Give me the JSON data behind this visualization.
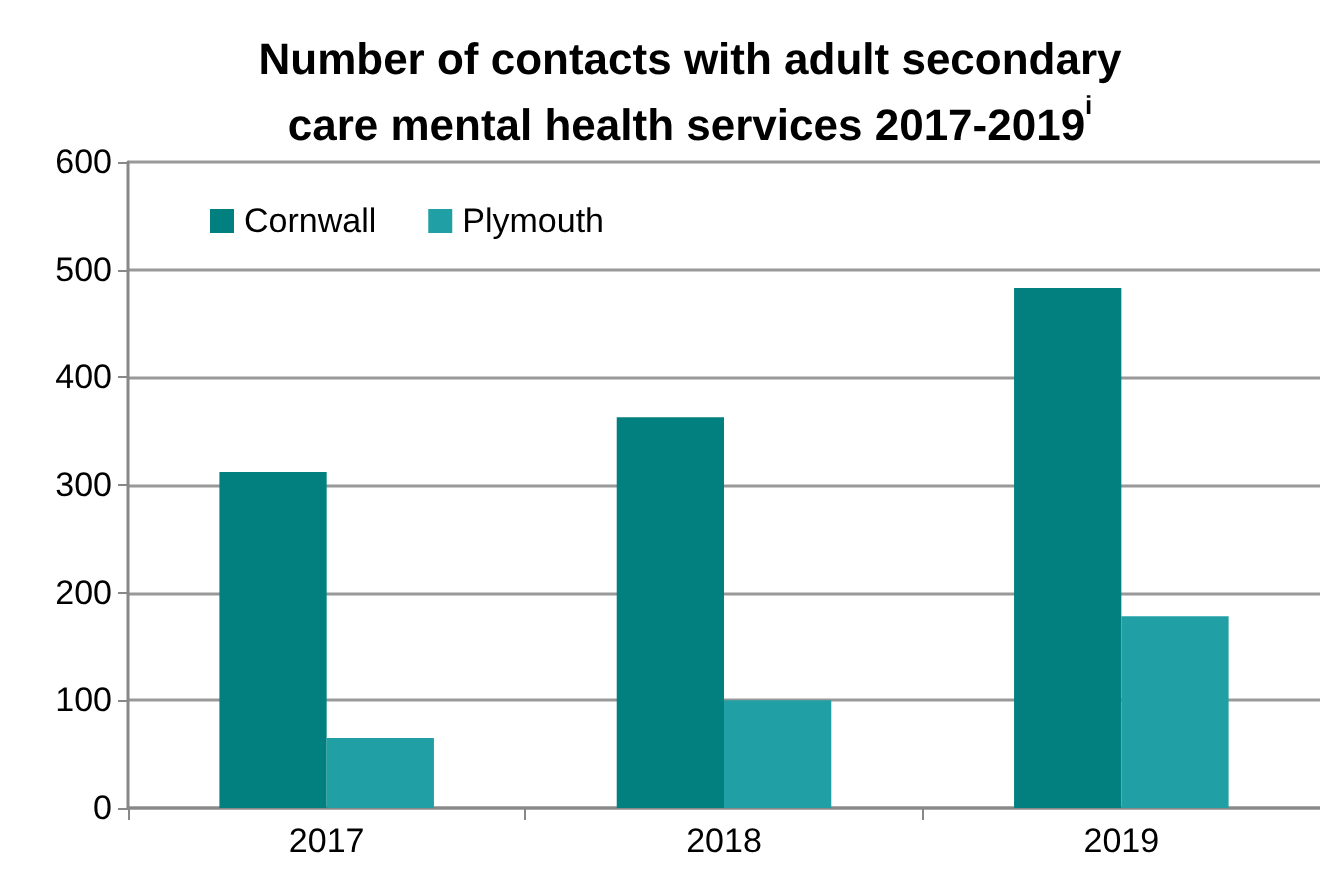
{
  "chart_data": {
    "type": "bar",
    "title": "Number of contacts with adult secondary\ncare mental health services 2017-2019$^{i}$",
    "categories": [
      "2017",
      "2018",
      "2019"
    ],
    "series": [
      {
        "name": "Cornwall",
        "color": "#02807f",
        "values": [
          312,
          363,
          483
        ]
      },
      {
        "name": "Plymouth",
        "color": "#20a0a4",
        "values": [
          65,
          100,
          178
        ]
      }
    ],
    "ylim": [
      0,
      600
    ],
    "yticks": [
      0,
      100,
      200,
      300,
      400,
      500,
      600
    ],
    "grid": "y",
    "legend": "top left"
  }
}
